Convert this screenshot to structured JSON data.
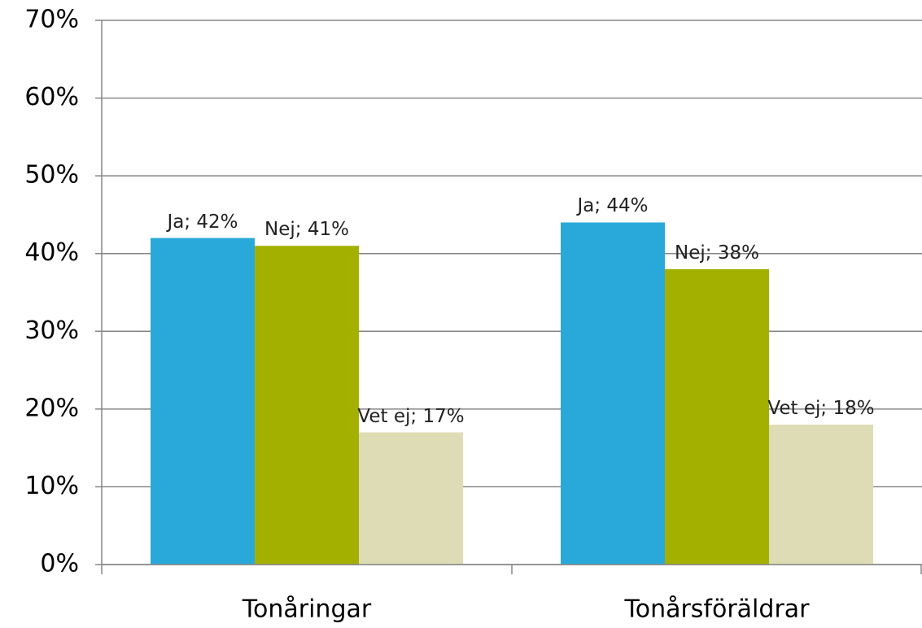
{
  "chart_data": {
    "type": "bar",
    "categories": [
      "Tonåringar",
      "Tonårsföräldrar"
    ],
    "series": [
      {
        "name": "Ja",
        "color": "#29a8da",
        "values": [
          42,
          44
        ],
        "value_labels": [
          "Ja; 42%",
          "Ja; 44%"
        ]
      },
      {
        "name": "Nej",
        "color": "#a3b000",
        "values": [
          41,
          38
        ],
        "value_labels": [
          "Nej; 41%",
          "Nej; 38%"
        ]
      },
      {
        "name": "Vet ej",
        "color": "#dedcb4",
        "values": [
          17,
          18
        ],
        "value_labels": [
          "Vet ej; 17%",
          "Vet ej; 18%"
        ]
      }
    ],
    "ylim": [
      0,
      70
    ],
    "yticks": [
      {
        "value": 0,
        "label": "0%"
      },
      {
        "value": 10,
        "label": "10%"
      },
      {
        "value": 20,
        "label": "20%"
      },
      {
        "value": 30,
        "label": "30%"
      },
      {
        "value": 40,
        "label": "40%"
      },
      {
        "value": 50,
        "label": "50%"
      },
      {
        "value": 60,
        "label": "60%"
      },
      {
        "value": 70,
        "label": "70%"
      }
    ],
    "grid": true
  }
}
